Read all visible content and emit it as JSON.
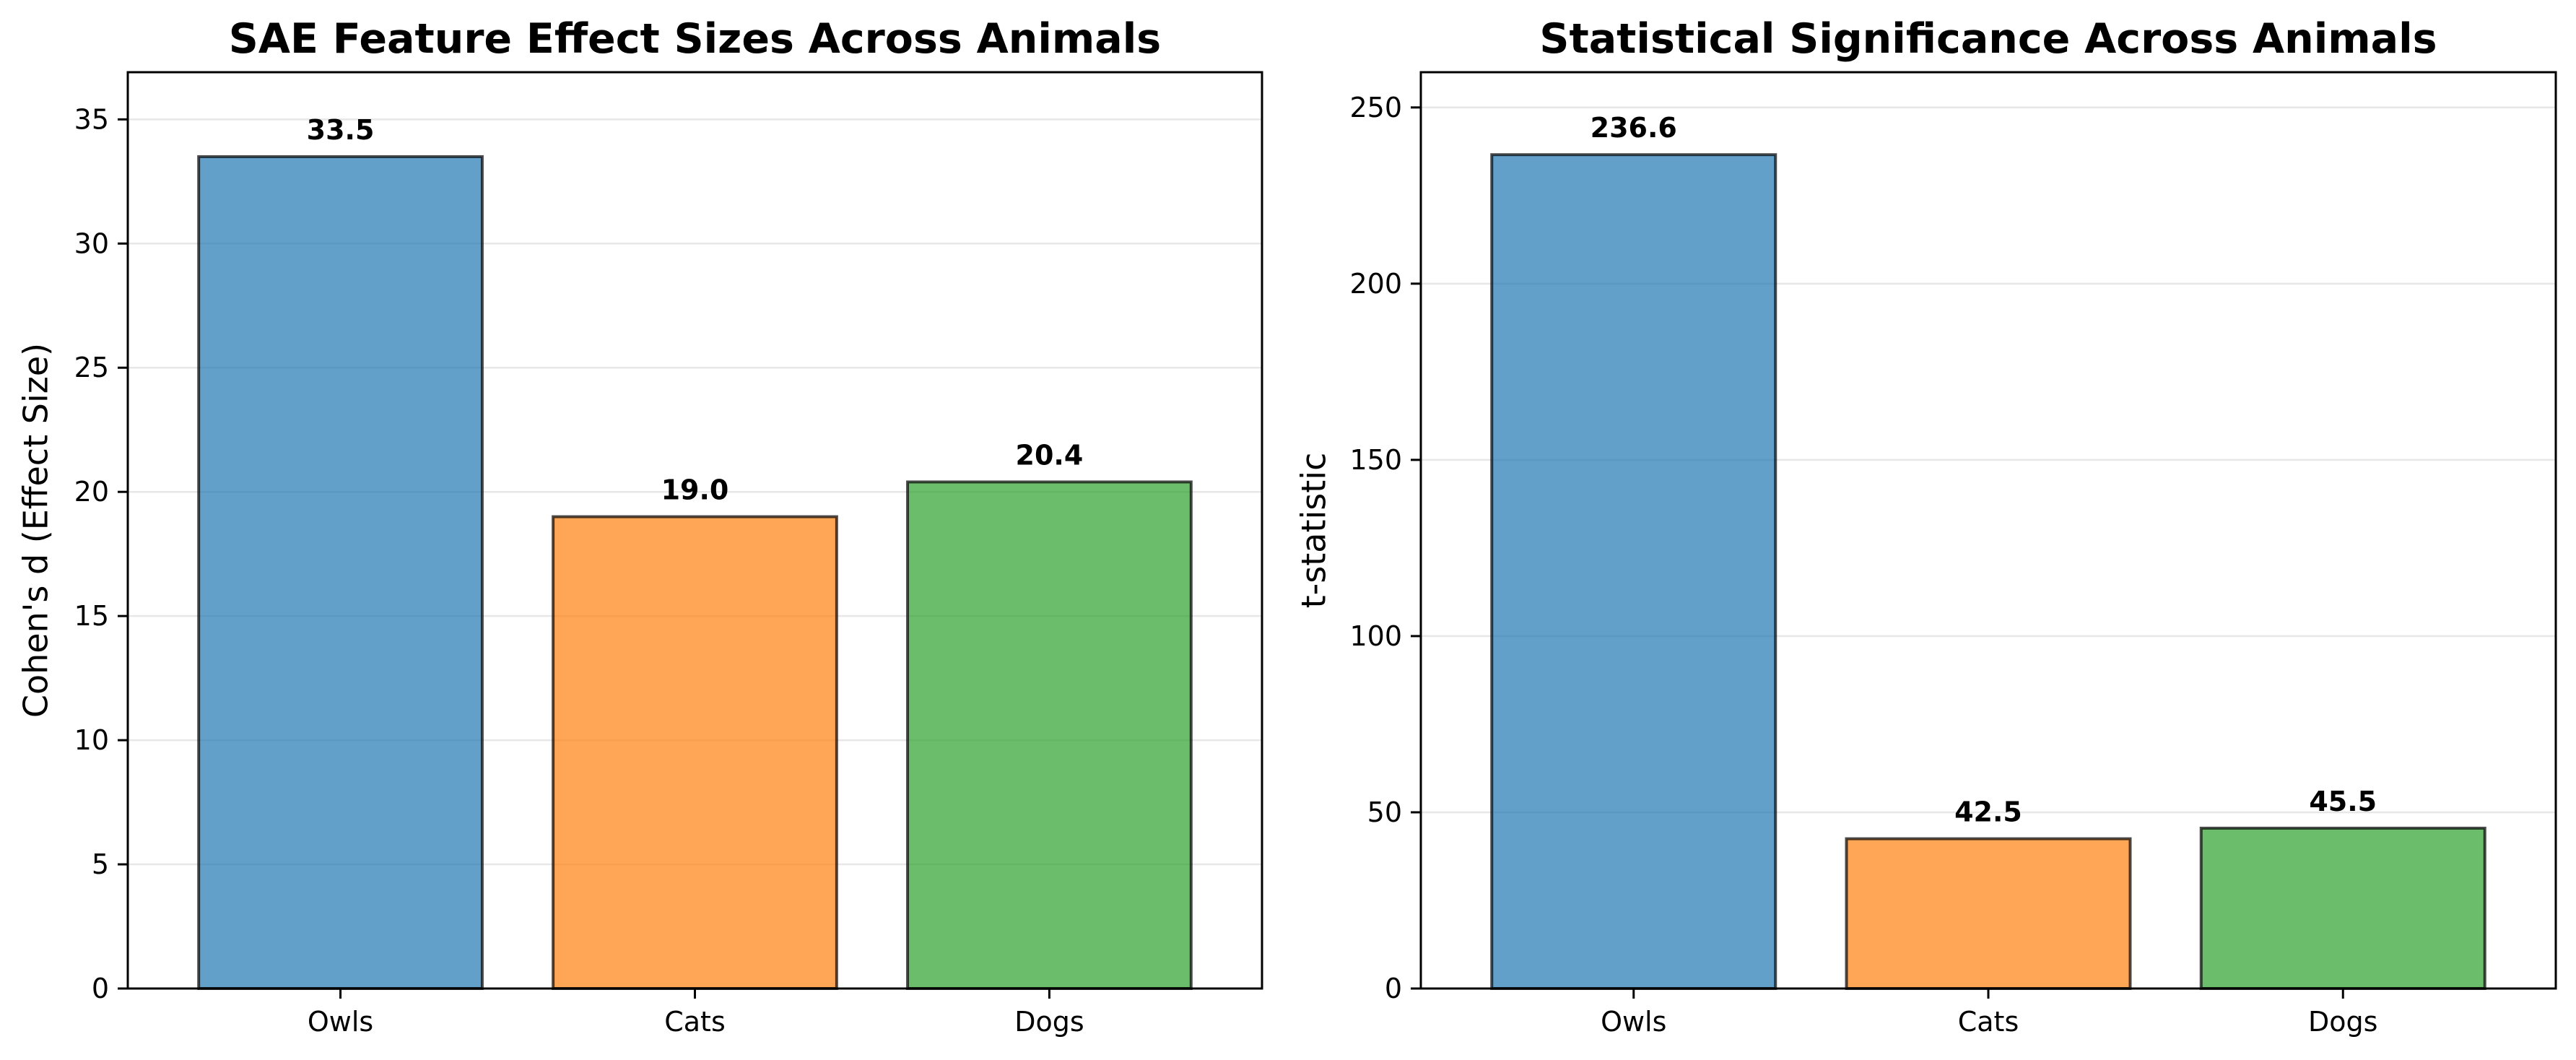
{
  "chart_data": [
    {
      "type": "bar",
      "title": "SAE Feature Effect Sizes Across Animals",
      "xlabel": "",
      "ylabel": "Cohen's d (Effect Size)",
      "categories": [
        "Owls",
        "Cats",
        "Dogs"
      ],
      "values": [
        33.5,
        19.0,
        20.4
      ],
      "value_labels": [
        "33.5",
        "19.0",
        "20.4"
      ],
      "colors": [
        "#1f77b4",
        "#ff7f0e",
        "#2ca02c"
      ],
      "ylim": [
        0,
        36.9
      ],
      "yticks": [
        0,
        5,
        10,
        15,
        20,
        25,
        30,
        35
      ],
      "grid": "y-axis"
    },
    {
      "type": "bar",
      "title": "Statistical Significance Across Animals",
      "xlabel": "",
      "ylabel": "t-statistic",
      "categories": [
        "Owls",
        "Cats",
        "Dogs"
      ],
      "values": [
        236.6,
        42.5,
        45.5
      ],
      "value_labels": [
        "236.6",
        "42.5",
        "45.5"
      ],
      "colors": [
        "#1f77b4",
        "#ff7f0e",
        "#2ca02c"
      ],
      "ylim": [
        0,
        260
      ],
      "yticks": [
        0,
        50,
        100,
        150,
        200,
        250
      ],
      "grid": "y-axis"
    }
  ]
}
